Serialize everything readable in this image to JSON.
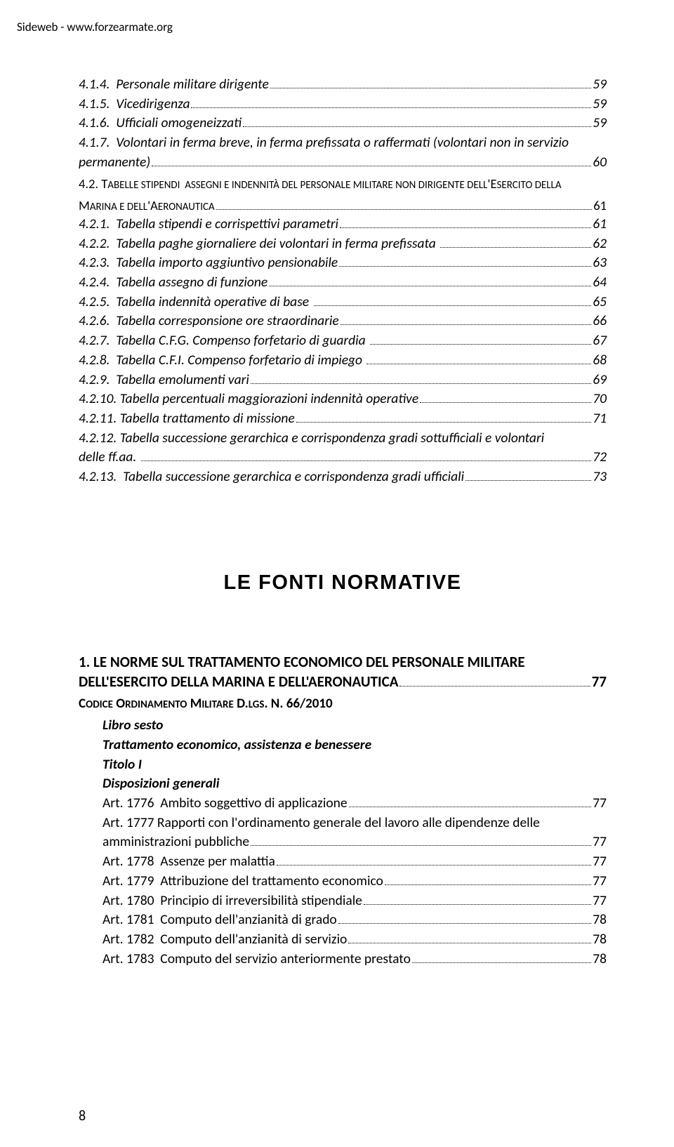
{
  "header": {
    "url": "Sideweb - www.forzearmate.org"
  },
  "toc1": [
    {
      "label": "4.1.4.  Personale militare dirigente",
      "page": "59",
      "cls": "toc-line hanging"
    },
    {
      "label": "4.1.5.  Vicedirigenza",
      "page": "59",
      "cls": "toc-line hanging"
    },
    {
      "label": "4.1.6.  Ufficiali omogeneizzati",
      "page": "59",
      "cls": "toc-line hanging"
    },
    {
      "label": "4.1.7.  Volontari in ferma breve, in ferma prefissata o raffermati (volontari non in servizio permanente)",
      "page": "60",
      "cls": "toc-line hanging",
      "wrap": true
    }
  ],
  "sec42": {
    "title_a": "4.2. Tabelle stipendi  assegni e indennità del personale militare non dirigente dell'Esercito della Marina e dell'Aeronautica",
    "page": "61"
  },
  "toc2": [
    {
      "label": "4.2.1.  Tabella stipendi e corrispettivi parametri",
      "page": "61"
    },
    {
      "label": "4.2.2.  Tabella paghe giornaliere dei volontari in ferma prefissata ",
      "page": "62"
    },
    {
      "label": "4.2.3.  Tabella importo aggiuntivo pensionabile",
      "page": "63"
    },
    {
      "label": "4.2.4.  Tabella assegno di funzione",
      "page": "64"
    },
    {
      "label": "4.2.5.  Tabella indennità operative di base ",
      "page": "65"
    },
    {
      "label": "4.2.6.  Tabella corresponsione ore straordinarie",
      "page": "66"
    },
    {
      "label": "4.2.7.  Tabella C.F.G. Compenso forfetario di guardia ",
      "page": "67"
    },
    {
      "label": "4.2.8.  Tabella C.F.I. Compenso forfetario di impiego ",
      "page": "68"
    },
    {
      "label": "4.2.9.  Tabella emolumenti vari",
      "page": "69"
    },
    {
      "label": "4.2.10. Tabella percentuali maggiorazioni indennità operative",
      "page": "70"
    },
    {
      "label": "4.2.11. Tabella trattamento di missione",
      "page": "71"
    },
    {
      "label": "4.2.12. Tabella successione gerarchica e corrispondenza gradi sottufficiali e volontari delle ff.aa. ",
      "page": "72",
      "wrap": true
    },
    {
      "label": "4.2.13.  Tabella successione gerarchica e corrispondenza gradi ufficiali",
      "page": "73"
    }
  ],
  "block": {
    "title": "LE FONTI NORMATIVE"
  },
  "h1": {
    "line1": "1. LE NORME SUL TRATTAMENTO ECONOMICO DEL PERSONALE MILITARE",
    "line2": "DELL'ESERCITO DELLA MARINA E DELL'AERONAUTICA",
    "page": "77"
  },
  "codice": {
    "label": "Codice Ordinamento Militare D.lgs. n. 66/2010"
  },
  "stub": {
    "a": "Libro sesto",
    "b": "Trattamento economico, assistenza e benessere",
    "c": "Titolo I",
    "d": "Disposizioni generali"
  },
  "arts": [
    {
      "label": "Art. 1776  Ambito soggettivo di applicazione",
      "page": "77"
    },
    {
      "label": "Art. 1777  Rapporti con l'ordinamento generale del lavoro alle dipendenze delle amministrazioni pubbliche",
      "page": "77",
      "wrap": true
    },
    {
      "label": "Art. 1778  Assenze per malattia",
      "page": "77"
    },
    {
      "label": "Art. 1779  Attribuzione del trattamento economico",
      "page": "77"
    },
    {
      "label": "Art. 1780  Principio di irreversibilità stipendiale",
      "page": "77"
    },
    {
      "label": "Art. 1781  Computo dell'anzianità di grado",
      "page": "78"
    },
    {
      "label": "Art. 1782  Computo dell'anzianità di servizio",
      "page": "78"
    },
    {
      "label": "Art. 1783  Computo del servizio anteriormente prestato",
      "page": "78"
    }
  ],
  "pagenum": "8"
}
